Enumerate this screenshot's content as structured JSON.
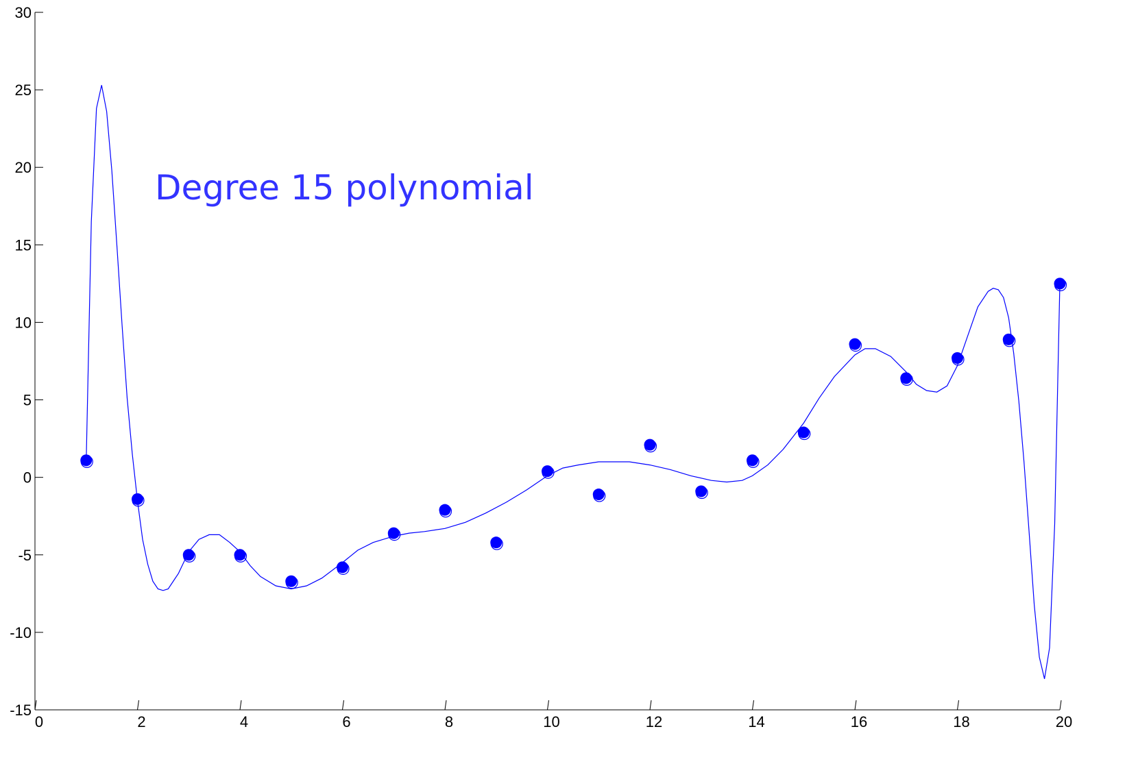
{
  "chart_data": {
    "type": "scatter",
    "annotation": "Degree 15 polynomial",
    "colors": {
      "series": "#0000ff",
      "annotation": "#3333ff",
      "axis": "#000000"
    },
    "xlim": [
      0,
      20
    ],
    "ylim": [
      -15,
      30
    ],
    "x_ticks": [
      0,
      2,
      4,
      6,
      8,
      10,
      12,
      14,
      16,
      18,
      20
    ],
    "y_ticks": [
      -15,
      -10,
      -5,
      0,
      5,
      10,
      15,
      20,
      25,
      30
    ],
    "x_tick_labels": [
      "0",
      "2",
      "4",
      "6",
      "8",
      "10",
      "12",
      "14",
      "16",
      "18",
      "20"
    ],
    "y_tick_labels": [
      "-15",
      "-10",
      "-5",
      "0",
      "5",
      "10",
      "15",
      "20",
      "25",
      "30"
    ],
    "grid": false,
    "series": [
      {
        "kind": "points",
        "x": [
          1,
          2,
          3,
          4,
          5,
          6,
          7,
          8,
          9,
          10,
          11,
          12,
          13,
          14,
          15,
          16,
          17,
          18,
          19,
          20
        ],
        "y": [
          1.1,
          -1.4,
          -5.0,
          -5.0,
          -6.7,
          -5.8,
          -3.6,
          -2.1,
          -4.2,
          0.4,
          -1.1,
          2.1,
          -0.9,
          1.1,
          2.9,
          8.6,
          6.4,
          7.7,
          8.9,
          12.5
        ]
      },
      {
        "kind": "line",
        "x": [
          1.0,
          1.1,
          1.2,
          1.3,
          1.4,
          1.5,
          1.6,
          1.7,
          1.8,
          1.9,
          2.0,
          2.1,
          2.2,
          2.3,
          2.4,
          2.5,
          2.6,
          2.8,
          3.0,
          3.2,
          3.4,
          3.6,
          3.8,
          4.0,
          4.2,
          4.4,
          4.7,
          5.0,
          5.3,
          5.6,
          6.0,
          6.3,
          6.6,
          7.0,
          7.3,
          7.6,
          8.0,
          8.4,
          8.8,
          9.2,
          9.6,
          10.0,
          10.3,
          10.6,
          11.0,
          11.3,
          11.6,
          12.0,
          12.4,
          12.8,
          13.2,
          13.5,
          13.8,
          14.0,
          14.3,
          14.6,
          15.0,
          15.3,
          15.6,
          16.0,
          16.2,
          16.4,
          16.7,
          17.0,
          17.2,
          17.4,
          17.6,
          17.8,
          18.0,
          18.2,
          18.4,
          18.6,
          18.7,
          18.8,
          18.9,
          19.0,
          19.1,
          19.2,
          19.3,
          19.4,
          19.5,
          19.6,
          19.7,
          19.8,
          19.9,
          20.0
        ],
        "y": [
          1.1,
          16.5,
          23.8,
          25.3,
          23.6,
          19.8,
          14.9,
          9.8,
          5.1,
          1.5,
          -1.5,
          -4.0,
          -5.6,
          -6.7,
          -7.2,
          -7.3,
          -7.2,
          -6.2,
          -4.8,
          -4.0,
          -3.7,
          -3.7,
          -4.2,
          -4.8,
          -5.7,
          -6.4,
          -7.0,
          -7.2,
          -7.0,
          -6.5,
          -5.5,
          -4.7,
          -4.2,
          -3.8,
          -3.6,
          -3.5,
          -3.3,
          -2.9,
          -2.3,
          -1.6,
          -0.8,
          0.1,
          0.6,
          0.8,
          1.0,
          1.0,
          1.0,
          0.8,
          0.5,
          0.1,
          -0.2,
          -0.3,
          -0.2,
          0.1,
          0.8,
          1.8,
          3.5,
          5.1,
          6.5,
          7.9,
          8.3,
          8.3,
          7.8,
          6.8,
          6.0,
          5.6,
          5.5,
          5.9,
          7.2,
          9.1,
          11.0,
          12.0,
          12.2,
          12.1,
          11.6,
          10.3,
          8.0,
          4.9,
          1.0,
          -3.5,
          -8.2,
          -11.6,
          -13.0,
          -11.0,
          -3.0,
          12.5
        ]
      }
    ]
  }
}
